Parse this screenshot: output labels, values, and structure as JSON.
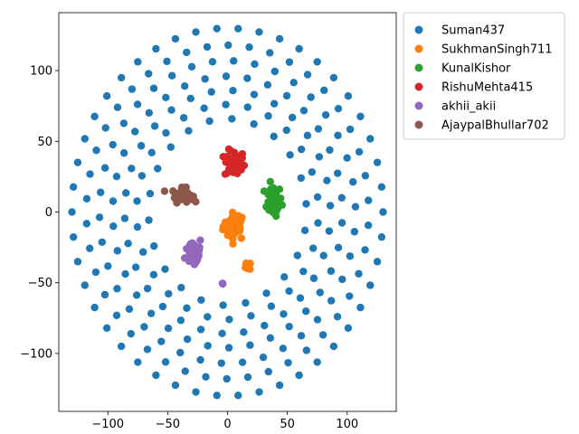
{
  "chart_data": {
    "type": "scatter",
    "title": "",
    "xlabel": "",
    "ylabel": "",
    "xlim": [
      -141,
      141
    ],
    "ylim": [
      -141,
      141
    ],
    "xticks": [
      -100,
      -50,
      0,
      50,
      100
    ],
    "yticks": [
      -100,
      -50,
      0,
      50,
      100
    ],
    "xtick_labels": [
      "−100",
      "−50",
      "0",
      "50",
      "100"
    ],
    "ytick_labels": [
      "−100",
      "−50",
      "0",
      "50",
      "100"
    ],
    "grid": false,
    "legend_placement": "outside-upper-right",
    "series": [
      {
        "name": "Suman437",
        "color": "#1f77b4",
        "rings": [
          {
            "radius": 130,
            "count": 46,
            "phase_deg": 0
          },
          {
            "radius": 118,
            "count": 42,
            "phase_deg": 4
          },
          {
            "radius": 107,
            "count": 38,
            "phase_deg": 2
          },
          {
            "radius": 96,
            "count": 34,
            "phase_deg": 6
          },
          {
            "radius": 86,
            "count": 30,
            "phase_deg": 3
          },
          {
            "radius": 76,
            "count": 26,
            "phase_deg": 8
          },
          {
            "radius": 66,
            "count": 22,
            "phase_deg": 5
          }
        ]
      },
      {
        "name": "SukhmanSingh711",
        "color": "#ff7f0e",
        "clusters": [
          {
            "cx": 6,
            "cy": -10,
            "sx": 8,
            "sy": 8,
            "count": 38
          },
          {
            "cx": 17,
            "cy": -39,
            "sx": 2,
            "sy": 3,
            "count": 6
          }
        ]
      },
      {
        "name": "KunalKishor",
        "color": "#2ca02c",
        "clusters": [
          {
            "cx": 38,
            "cy": 8,
            "sx": 6,
            "sy": 9,
            "count": 42
          }
        ]
      },
      {
        "name": "RishuMehta415",
        "color": "#d62728",
        "clusters": [
          {
            "cx": 6,
            "cy": 34,
            "sx": 7,
            "sy": 8,
            "count": 42
          }
        ]
      },
      {
        "name": "akhii_akii",
        "color": "#9467bd",
        "clusters": [
          {
            "cx": -28,
            "cy": -28,
            "sx": 6,
            "sy": 9,
            "count": 40
          },
          {
            "cx": -4,
            "cy": -50,
            "sx": 1.5,
            "sy": 1.5,
            "count": 3
          }
        ]
      },
      {
        "name": "AjaypalBhullar702",
        "color": "#8c564b",
        "clusters": [
          {
            "cx": -38,
            "cy": 12,
            "sx": 7,
            "sy": 4,
            "count": 42
          }
        ]
      }
    ]
  }
}
